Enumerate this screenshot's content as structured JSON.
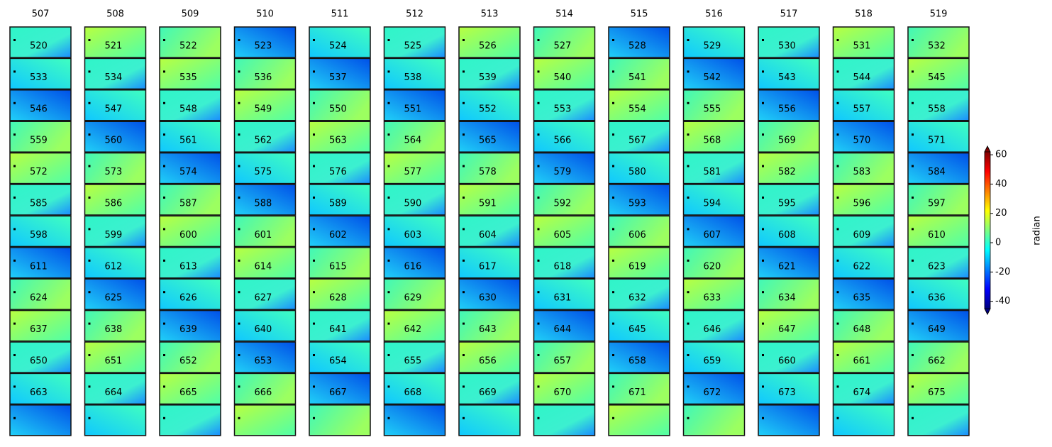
{
  "chart_data": {
    "type": "image-grid",
    "titles": [
      "507",
      "508",
      "509",
      "510",
      "511",
      "512",
      "513",
      "514",
      "515",
      "516",
      "517",
      "518",
      "519"
    ],
    "labels": [
      [
        "520",
        "521",
        "522",
        "523",
        "524",
        "525",
        "526",
        "527",
        "528",
        "529",
        "530",
        "531",
        "532"
      ],
      [
        "533",
        "534",
        "535",
        "536",
        "537",
        "538",
        "539",
        "540",
        "541",
        "542",
        "543",
        "544",
        "545"
      ],
      [
        "546",
        "547",
        "548",
        "549",
        "550",
        "551",
        "552",
        "553",
        "554",
        "555",
        "556",
        "557",
        "558"
      ],
      [
        "559",
        "560",
        "561",
        "562",
        "563",
        "564",
        "565",
        "566",
        "567",
        "568",
        "569",
        "570",
        "571"
      ],
      [
        "572",
        "573",
        "574",
        "575",
        "576",
        "577",
        "578",
        "579",
        "580",
        "581",
        "582",
        "583",
        "584"
      ],
      [
        "585",
        "586",
        "587",
        "588",
        "589",
        "590",
        "591",
        "592",
        "593",
        "594",
        "595",
        "596",
        "597"
      ],
      [
        "598",
        "599",
        "600",
        "601",
        "602",
        "603",
        "604",
        "605",
        "606",
        "607",
        "608",
        "609",
        "610"
      ],
      [
        "611",
        "612",
        "613",
        "614",
        "615",
        "616",
        "617",
        "618",
        "619",
        "620",
        "621",
        "622",
        "623"
      ],
      [
        "624",
        "625",
        "626",
        "627",
        "628",
        "629",
        "630",
        "631",
        "632",
        "633",
        "634",
        "635",
        "636"
      ],
      [
        "637",
        "638",
        "639",
        "640",
        "641",
        "642",
        "643",
        "644",
        "645",
        "646",
        "647",
        "648",
        "649"
      ],
      [
        "650",
        "651",
        "652",
        "653",
        "654",
        "655",
        "656",
        "657",
        "658",
        "659",
        "660",
        "661",
        "662"
      ],
      [
        "663",
        "664",
        "665",
        "666",
        "667",
        "668",
        "669",
        "670",
        "671",
        "672",
        "673",
        "674",
        "675"
      ]
    ],
    "colorbar": {
      "label": "radian",
      "clim": [
        -45,
        62
      ],
      "ticks": [
        60,
        40,
        20,
        0,
        -20,
        -40
      ],
      "colormap": "jet",
      "extend": "both"
    }
  }
}
